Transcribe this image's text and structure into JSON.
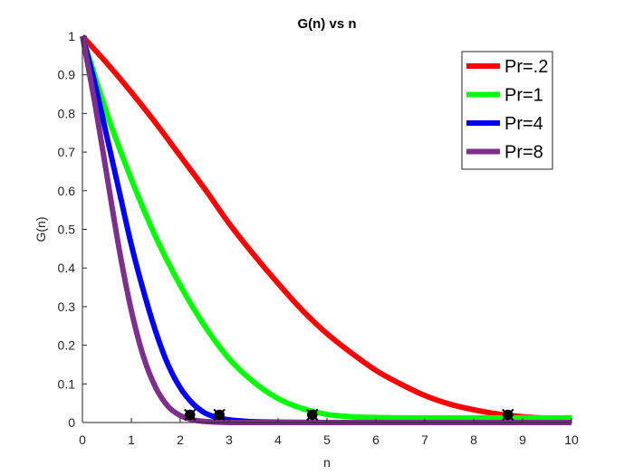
{
  "chart_data": {
    "type": "line",
    "title": "G(n) vs n",
    "xlabel": "n",
    "ylabel": "G(n)",
    "xlim": [
      0,
      10
    ],
    "ylim": [
      0,
      1
    ],
    "xticks": [
      "0",
      "1",
      "2",
      "3",
      "4",
      "5",
      "6",
      "7",
      "8",
      "9",
      "10"
    ],
    "yticks": [
      "0",
      "0.1",
      "0.2",
      "0.3",
      "0.4",
      "0.5",
      "0.6",
      "0.7",
      "0.8",
      "0.9",
      "1"
    ],
    "grid": false,
    "legend_position": "top-right",
    "series": [
      {
        "name": "Pr=.2",
        "color": "#ff0000",
        "x": [
          0,
          0.5,
          1,
          1.5,
          2,
          2.5,
          3,
          3.5,
          4,
          4.5,
          5,
          5.5,
          6,
          6.5,
          7,
          7.5,
          8,
          8.5,
          9,
          9.5,
          10
        ],
        "y": [
          1.0,
          0.93,
          0.855,
          0.775,
          0.69,
          0.605,
          0.515,
          0.435,
          0.36,
          0.29,
          0.23,
          0.18,
          0.135,
          0.1,
          0.07,
          0.048,
          0.033,
          0.022,
          0.015,
          0.011,
          0.008
        ],
        "marker": [
          8.7,
          0.02
        ]
      },
      {
        "name": "Pr=1",
        "color": "#00ff00",
        "x": [
          0,
          0.5,
          1,
          1.5,
          2,
          2.5,
          3,
          3.5,
          4,
          4.5,
          5,
          5.5,
          6,
          6.5,
          7,
          7.5,
          8,
          8.5,
          9,
          9.5,
          10
        ],
        "y": [
          1.0,
          0.8,
          0.63,
          0.48,
          0.355,
          0.25,
          0.165,
          0.105,
          0.062,
          0.036,
          0.021,
          0.015,
          0.013,
          0.012,
          0.012,
          0.012,
          0.012,
          0.012,
          0.012,
          0.012,
          0.012
        ],
        "marker": [
          4.7,
          0.02
        ]
      },
      {
        "name": "Pr=4",
        "color": "#0000ff",
        "x": [
          0,
          0.25,
          0.5,
          0.75,
          1,
          1.25,
          1.5,
          1.75,
          2,
          2.25,
          2.5,
          2.75,
          3,
          3.25,
          3.5,
          4,
          5,
          6,
          7,
          8,
          9,
          10
        ],
        "y": [
          1.0,
          0.88,
          0.74,
          0.6,
          0.46,
          0.34,
          0.235,
          0.15,
          0.09,
          0.05,
          0.025,
          0.013,
          0.007,
          0.004,
          0.002,
          0.001,
          0.0,
          0.0,
          0.0,
          0.0,
          0.0,
          0.0
        ],
        "marker": [
          2.8,
          0.02
        ]
      },
      {
        "name": "Pr=8",
        "color": "#7e2f8e",
        "x": [
          0,
          0.25,
          0.5,
          0.75,
          1,
          1.25,
          1.5,
          1.75,
          2,
          2.25,
          2.5,
          2.75,
          3,
          3.5,
          4,
          5,
          6,
          7,
          8,
          9,
          10
        ],
        "y": [
          1.0,
          0.83,
          0.64,
          0.45,
          0.29,
          0.17,
          0.09,
          0.042,
          0.018,
          0.007,
          0.003,
          0.001,
          0.0,
          0.0,
          0.0,
          0.0,
          0.0,
          0.0,
          0.0,
          0.0,
          0.0
        ],
        "marker": [
          2.2,
          0.02
        ]
      }
    ]
  }
}
